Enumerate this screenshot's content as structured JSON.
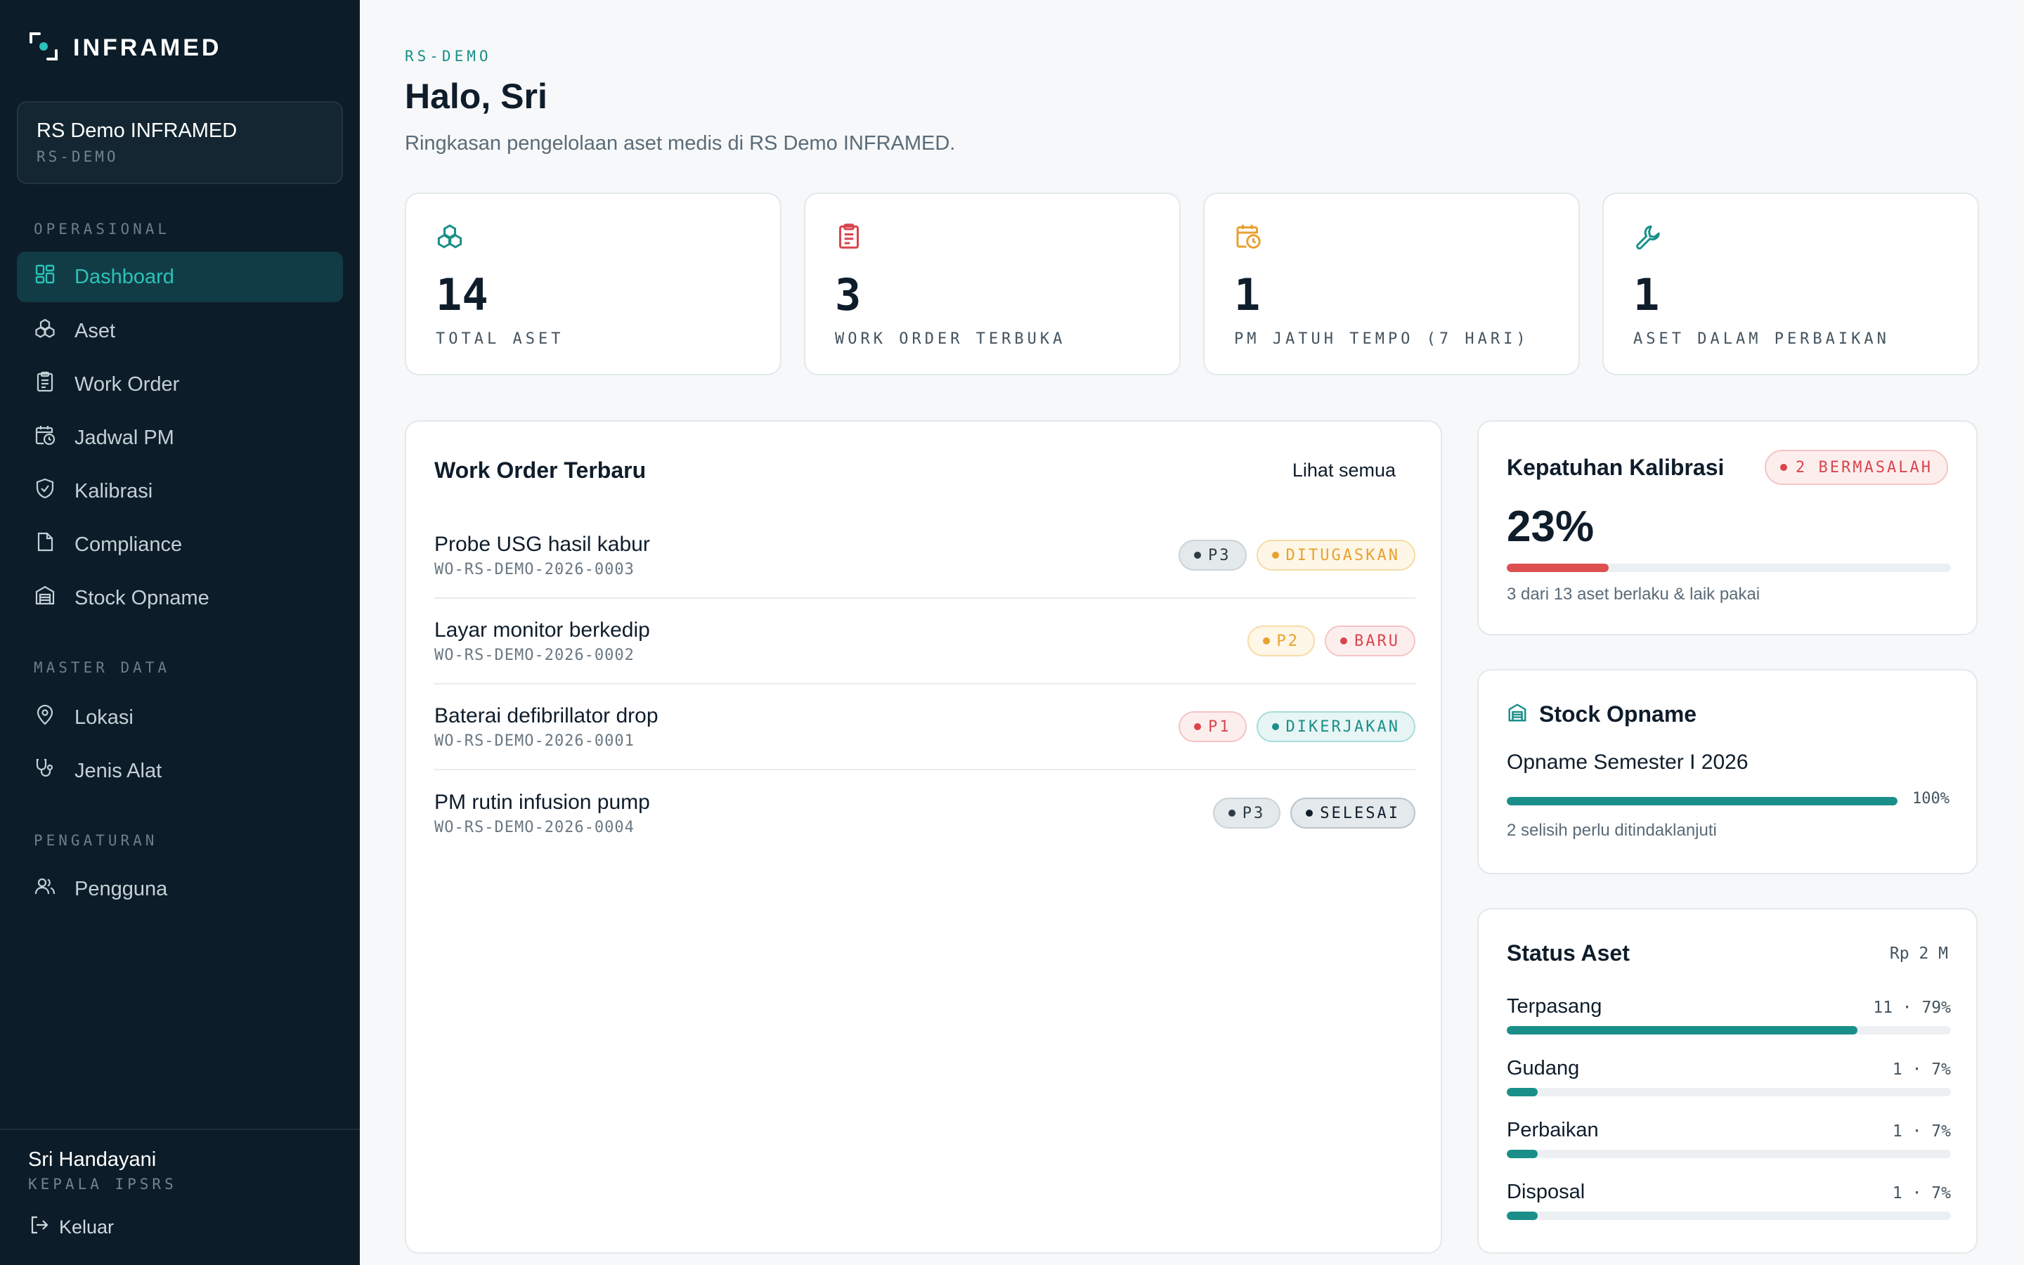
{
  "brand": {
    "name": "INFRAMED"
  },
  "org": {
    "name": "RS Demo INFRAMED",
    "code": "RS-DEMO"
  },
  "sidebar": {
    "sections": [
      {
        "label": "OPERASIONAL"
      },
      {
        "label": "MASTER DATA"
      },
      {
        "label": "PENGATURAN"
      }
    ],
    "items": [
      {
        "label": "Dashboard",
        "icon": "dashboard-icon"
      },
      {
        "label": "Aset",
        "icon": "assets-icon"
      },
      {
        "label": "Work Order",
        "icon": "clipboard-icon"
      },
      {
        "label": "Jadwal PM",
        "icon": "calendar-clock-icon"
      },
      {
        "label": "Kalibrasi",
        "icon": "shield-check-icon"
      },
      {
        "label": "Compliance",
        "icon": "document-icon"
      },
      {
        "label": "Stock Opname",
        "icon": "warehouse-icon"
      },
      {
        "label": "Lokasi",
        "icon": "map-pin-icon"
      },
      {
        "label": "Jenis Alat",
        "icon": "stethoscope-icon"
      },
      {
        "label": "Pengguna",
        "icon": "users-icon"
      }
    ]
  },
  "user": {
    "name": "Sri Handayani",
    "role": "KEPALA IPSRS",
    "logout_label": "Keluar"
  },
  "header": {
    "eyebrow": "RS-DEMO",
    "title": "Halo, Sri",
    "subtitle": "Ringkasan pengelolaan aset medis di RS Demo INFRAMED."
  },
  "stats": [
    {
      "value": "14",
      "label": "TOTAL ASET",
      "icon": "assets-icon",
      "color": "#1a8f89"
    },
    {
      "value": "3",
      "label": "WORK ORDER TERBUKA",
      "icon": "clipboard-icon",
      "color": "#d9454d"
    },
    {
      "value": "1",
      "label": "PM JATUH TEMPO (7 HARI)",
      "icon": "calendar-clock-icon",
      "color": "#e8a12f"
    },
    {
      "value": "1",
      "label": "ASET DALAM PERBAIKAN",
      "icon": "wrench-icon",
      "color": "#1a8f89"
    }
  ],
  "work_orders": {
    "title": "Work Order Terbaru",
    "see_all": "Lihat semua",
    "rows": [
      {
        "title": "Probe USG hasil kabur",
        "code": "WO-RS-DEMO-2026-0003",
        "priority": "P3",
        "status": "DITUGASKAN"
      },
      {
        "title": "Layar monitor berkedip",
        "code": "WO-RS-DEMO-2026-0002",
        "priority": "P2",
        "status": "BARU"
      },
      {
        "title": "Baterai defibrillator drop",
        "code": "WO-RS-DEMO-2026-0001",
        "priority": "P1",
        "status": "DIKERJAKAN"
      },
      {
        "title": "PM rutin infusion pump",
        "code": "WO-RS-DEMO-2026-0004",
        "priority": "P3",
        "status": "SELESAI"
      }
    ]
  },
  "calibration": {
    "title": "Kepatuhan Kalibrasi",
    "alert": "2 BERMASALAH",
    "percent": "23%",
    "progress": 0.23,
    "note": "3 dari 13 aset berlaku & laik pakai",
    "color": "#de5050"
  },
  "stock_opname": {
    "title": "Stock Opname",
    "name": "Opname Semester I 2026",
    "percent": "100%",
    "progress": 1.0,
    "note": "2 selisih perlu ditindaklanjuti",
    "color": "#1a8f89"
  },
  "asset_status": {
    "title": "Status Aset",
    "value": "Rp 2 M",
    "rows": [
      {
        "label": "Terpasang",
        "count": "11 · 79%",
        "fraction": 0.79
      },
      {
        "label": "Gudang",
        "count": "1 · 7%",
        "fraction": 0.07
      },
      {
        "label": "Perbaikan",
        "count": "1 · 7%",
        "fraction": 0.07
      },
      {
        "label": "Disposal",
        "count": "1 · 7%",
        "fraction": 0.07
      }
    ]
  },
  "colors": {
    "accent": "#1a8f89",
    "sidebar_bg": "#0c1c28",
    "danger": "#d9454d",
    "warning": "#e8a12f"
  }
}
